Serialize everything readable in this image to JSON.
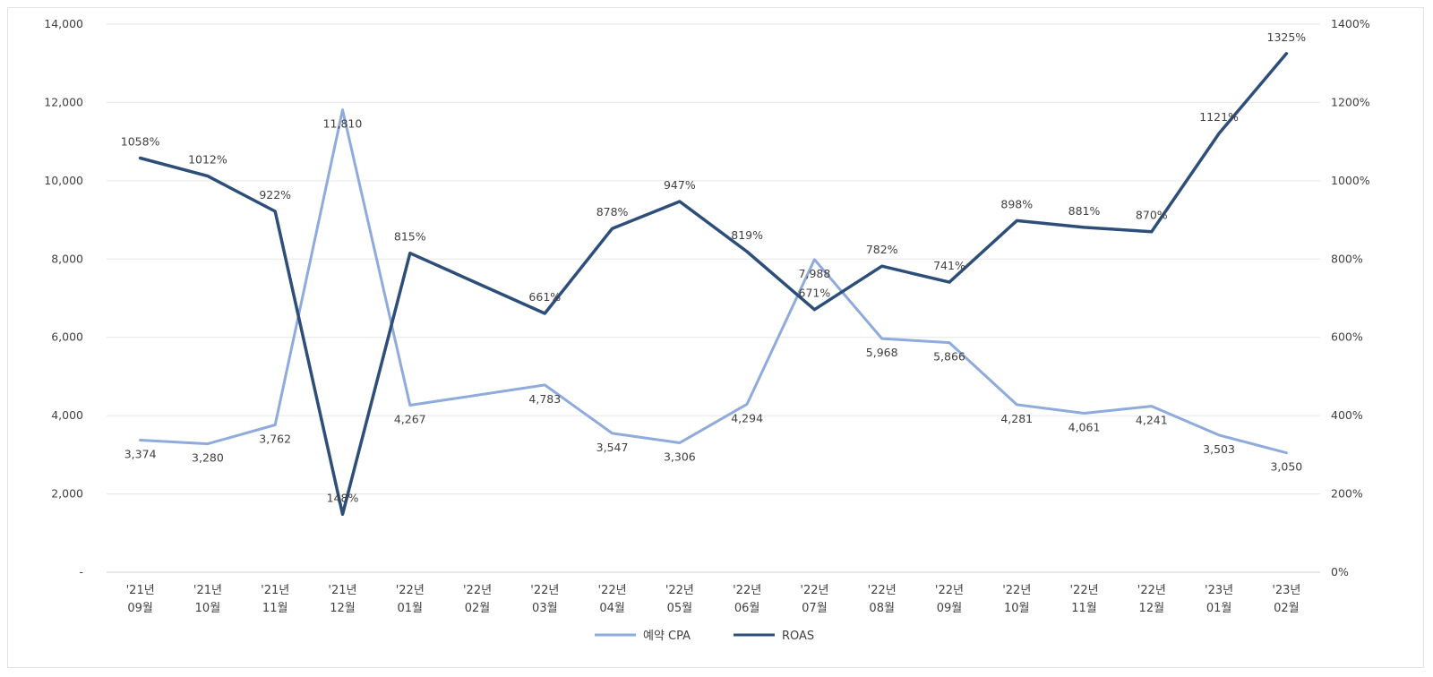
{
  "chart_data": {
    "type": "line",
    "title": "",
    "categories": [
      [
        "'21년",
        "09월"
      ],
      [
        "'21년",
        "10월"
      ],
      [
        "'21년",
        "11월"
      ],
      [
        "'21년",
        "12월"
      ],
      [
        "'22년",
        "01월"
      ],
      [
        "'22년",
        "02월"
      ],
      [
        "'22년",
        "03월"
      ],
      [
        "'22년",
        "04월"
      ],
      [
        "'22년",
        "05월"
      ],
      [
        "'22년",
        "06월"
      ],
      [
        "'22년",
        "07월"
      ],
      [
        "'22년",
        "08월"
      ],
      [
        "'22년",
        "09월"
      ],
      [
        "'22년",
        "10월"
      ],
      [
        "'22년",
        "11월"
      ],
      [
        "'22년",
        "12월"
      ],
      [
        "'23년",
        "01월"
      ],
      [
        "'23년",
        "02월"
      ]
    ],
    "y_left": {
      "ylim": [
        0,
        14000
      ],
      "ticks": [
        0,
        2000,
        4000,
        6000,
        8000,
        10000,
        12000,
        14000
      ],
      "tick_labels": [
        "-",
        "2,000",
        "4,000",
        "6,000",
        "8,000",
        "10,000",
        "12,000",
        "14,000"
      ]
    },
    "y_right": {
      "ylim": [
        0,
        1400
      ],
      "ticks": [
        0,
        200,
        400,
        600,
        800,
        1000,
        1200,
        1400
      ],
      "tick_labels": [
        "0%",
        "200%",
        "400%",
        "600%",
        "800%",
        "1000%",
        "1200%",
        "1400%"
      ]
    },
    "series": [
      {
        "name": "예약 CPA",
        "axis": "left",
        "color": "#8faadc",
        "values": [
          3374,
          3280,
          3762,
          11810,
          4267,
          null,
          4783,
          3547,
          3306,
          4294,
          7988,
          5968,
          5866,
          4281,
          4061,
          4241,
          3503,
          3050
        ],
        "labels": [
          "3,374",
          "3,280",
          "3,762",
          "11,810",
          "4,267",
          "",
          "4,783",
          "3,547",
          "3,306",
          "4,294",
          "7,988",
          "5,968",
          "5,866",
          "4,281",
          "4,061",
          "4,241",
          "3,503",
          "3,050"
        ]
      },
      {
        "name": "ROAS",
        "axis": "right",
        "color": "#2e4e7a",
        "values": [
          1058,
          1012,
          922,
          148,
          815,
          null,
          661,
          878,
          947,
          819,
          671,
          782,
          741,
          898,
          881,
          870,
          1121,
          1325
        ],
        "labels": [
          "1058%",
          "1012%",
          "922%",
          "148%",
          "815%",
          "",
          "661%",
          "878%",
          "947%",
          "819%",
          "671%",
          "782%",
          "741%",
          "898%",
          "881%",
          "870%",
          "1121%",
          "1325%"
        ]
      }
    ],
    "grid": true,
    "legend": "bottom"
  }
}
